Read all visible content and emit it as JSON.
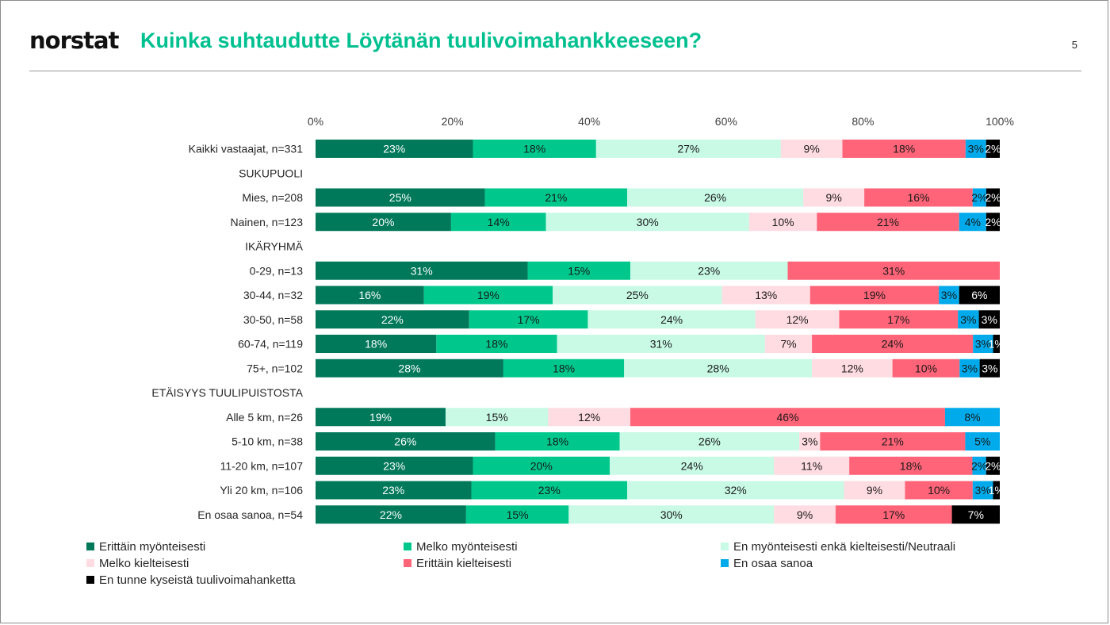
{
  "header": {
    "logo_text": "norstat",
    "title": "Kuinka suhtaudutte Löytänän tuulivoimahankkeeseen?",
    "page_number": "5"
  },
  "chart_data": {
    "type": "bar",
    "orientation": "horizontal",
    "stacked": true,
    "xlim": [
      0,
      100
    ],
    "x_ticks": [
      "0%",
      "20%",
      "40%",
      "60%",
      "80%",
      "100%"
    ],
    "categories": [
      "Kaikki vastaajat, n=331",
      "SUKUPUOLI",
      "Mies, n=208",
      "Nainen, n=123",
      "IKÄRYHMÄ",
      "0-29, n=13",
      "30-44, n=32",
      "30-50, n=58",
      "60-74, n=119",
      "75+, n=102",
      "ETÄISYYS TUULIPUISTOSTA",
      "Alle 5 km, n=26",
      "5-10 km, n=38",
      "11-20 km, n=107",
      "Yli 20 km, n=106",
      "En osaa sanoa, n=54"
    ],
    "section_headers": [
      "SUKUPUOLI",
      "IKÄRYHMÄ",
      "ETÄISYYS TUULIPUISTOSTA"
    ],
    "series": [
      {
        "name": "Erittäin myönteisesti",
        "color": "#00785a",
        "text_color": "#ffffff",
        "values": [
          23,
          null,
          25,
          20,
          null,
          31,
          16,
          22,
          18,
          28,
          null,
          19,
          26,
          23,
          23,
          22
        ]
      },
      {
        "name": "Melko myönteisesti",
        "color": "#00c88c",
        "text_color": "#1a1a1a",
        "values": [
          18,
          null,
          21,
          14,
          null,
          15,
          19,
          17,
          18,
          18,
          null,
          0,
          18,
          20,
          23,
          15
        ]
      },
      {
        "name": "En myönteisesti enkä kielteisesti/Neutraali",
        "color": "#c8fae6",
        "text_color": "#1a1a1a",
        "values": [
          27,
          null,
          26,
          30,
          null,
          23,
          25,
          24,
          31,
          28,
          null,
          15,
          26,
          24,
          32,
          30
        ]
      },
      {
        "name": "Melko kielteisesti",
        "color": "#ffdce1",
        "text_color": "#1a1a1a",
        "values": [
          9,
          null,
          9,
          10,
          null,
          0,
          13,
          12,
          7,
          12,
          null,
          12,
          3,
          11,
          9,
          9
        ]
      },
      {
        "name": "Erittäin kielteisesti",
        "color": "#ff6478",
        "text_color": "#1a1a1a",
        "values": [
          18,
          null,
          16,
          21,
          null,
          31,
          19,
          17,
          24,
          10,
          null,
          46,
          21,
          18,
          10,
          17
        ]
      },
      {
        "name": "En osaa sanoa",
        "color": "#00aaeb",
        "text_color": "#1a1a1a",
        "values": [
          3,
          null,
          2,
          4,
          null,
          0,
          3,
          3,
          3,
          3,
          null,
          8,
          5,
          2,
          3,
          0
        ]
      },
      {
        "name": "En tunne kyseistä tuulivoimahanketta",
        "color": "#000000",
        "text_color": "#ffffff",
        "values": [
          2,
          null,
          2,
          2,
          null,
          0,
          6,
          3,
          1,
          3,
          null,
          0,
          0,
          2,
          1,
          7
        ]
      }
    ],
    "legend_position": "bottom",
    "grid": false
  }
}
